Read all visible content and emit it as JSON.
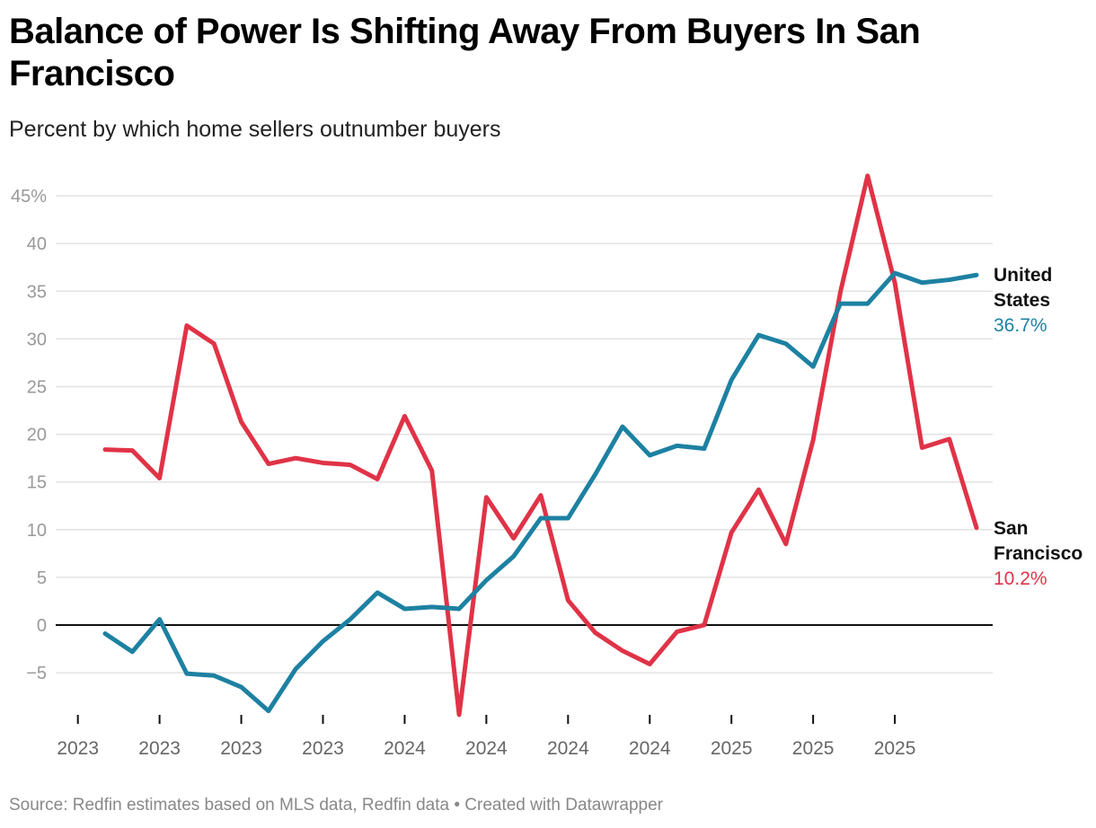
{
  "title": "Balance of Power Is Shifting Away From Buyers In San Francisco",
  "subtitle": "Percent by which home sellers outnumber buyers",
  "source": "Source: Redfin estimates based on MLS data, Redfin data • Created with Datawrapper",
  "chart_data": {
    "type": "line",
    "title": "Balance of Power Is Shifting Away From Buyers In San Francisco",
    "subtitle": "Percent by which home sellers outnumber buyers",
    "ylim": [
      -9.5,
      47
    ],
    "yticks": [
      -5,
      0,
      5,
      10,
      15,
      20,
      25,
      30,
      35,
      40,
      45
    ],
    "ytick_labels": [
      "−5",
      "0",
      "5",
      "10",
      "15",
      "20",
      "25",
      "30",
      "35",
      "40",
      "45%"
    ],
    "xtick_labels": [
      "2023",
      "2023",
      "2023",
      "2023",
      "2024",
      "2024",
      "2024",
      "2024",
      "2025",
      "2025",
      "2025"
    ],
    "grid": true,
    "series": [
      {
        "name": "United States",
        "color": "#1d81a2",
        "end_label": "36.7%",
        "name_lines": [
          "United",
          "States"
        ],
        "values": [
          -0.9,
          -2.8,
          0.6,
          -5.1,
          -5.3,
          -6.5,
          -9.0,
          -4.6,
          -1.7,
          0.6,
          3.4,
          1.7,
          1.9,
          1.7,
          4.7,
          7.2,
          11.2,
          11.2,
          15.8,
          20.8,
          17.8,
          18.8,
          18.5,
          25.7,
          30.4,
          29.5,
          27.1,
          33.7,
          33.7,
          36.9,
          35.9,
          36.2,
          36.7
        ]
      },
      {
        "name": "San Francisco",
        "color": "#e03347",
        "end_label": "10.2%",
        "name_lines": [
          "San",
          "Francisco"
        ],
        "values": [
          18.4,
          18.3,
          15.4,
          31.4,
          29.5,
          21.3,
          16.9,
          17.5,
          17.0,
          16.8,
          15.3,
          21.9,
          16.2,
          -9.4,
          13.4,
          9.1,
          13.6,
          2.6,
          -0.8,
          -2.7,
          -4.1,
          -0.7,
          0.0,
          9.7,
          14.2,
          8.5,
          19.4,
          34.9,
          47.1,
          35.9,
          18.6,
          19.5,
          10.2
        ]
      }
    ]
  }
}
